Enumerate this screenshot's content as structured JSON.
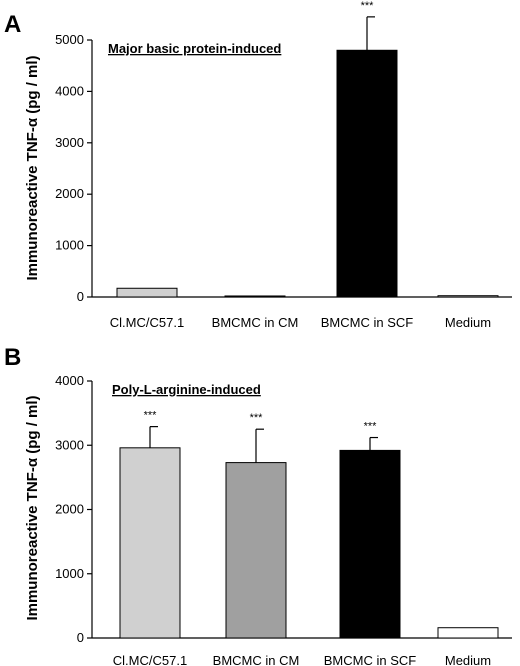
{
  "chart_data": [
    {
      "type": "bar",
      "panel": "A",
      "title": "Major basic protein-induced",
      "ylabel": "Immunoreactive TNF-α (pg / ml)",
      "ylim": [
        0,
        5000
      ],
      "yticks": [
        0,
        1000,
        2000,
        3000,
        4000,
        5000
      ],
      "categories": [
        "Cl.MC/C57.1",
        "BMCMC in CM",
        "BMCMC in SCF",
        "Medium"
      ],
      "values": [
        170,
        20,
        4800,
        25
      ],
      "errors": [
        0,
        0,
        650,
        0
      ],
      "significance": [
        "",
        "",
        "***",
        ""
      ],
      "colors": [
        "#d0d0d0",
        "#a0a0a0",
        "#000000",
        "#ffffff"
      ]
    },
    {
      "type": "bar",
      "panel": "B",
      "title": "Poly-L-arginine-induced",
      "ylabel": "Immunoreactive TNF-α (pg / ml)",
      "ylim": [
        0,
        4000
      ],
      "yticks": [
        0,
        1000,
        2000,
        3000,
        4000
      ],
      "categories": [
        "Cl.MC/C57.1",
        "BMCMC in CM",
        "BMCMC in SCF",
        "Medium"
      ],
      "values": [
        2960,
        2730,
        2920,
        160
      ],
      "errors": [
        330,
        520,
        200,
        0
      ],
      "significance": [
        "***",
        "***",
        "***",
        ""
      ],
      "colors": [
        "#d0d0d0",
        "#a0a0a0",
        "#000000",
        "#ffffff"
      ]
    }
  ]
}
